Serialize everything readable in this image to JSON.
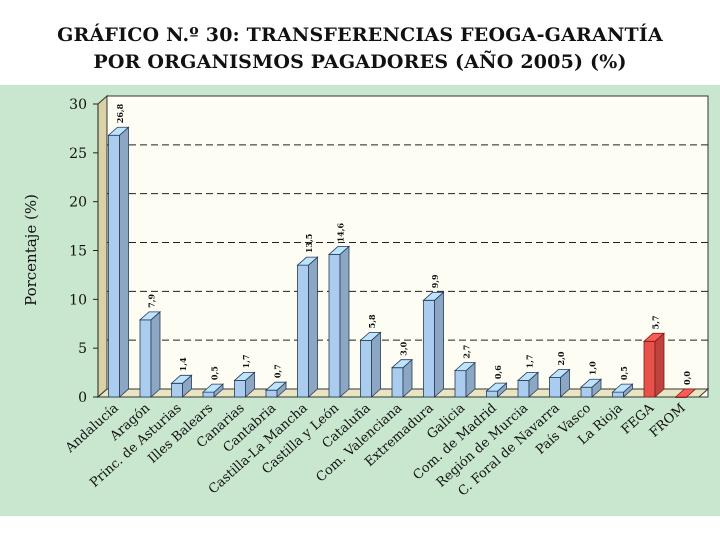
{
  "title_line1": "GRÁFICO N.º 30: TRANSFERENCIAS FEOGA-GARANTÍA",
  "title_line2": "POR ORGANISMOS PAGADORES (AÑO 2005) (%)",
  "colors": {
    "panel": "#c9e6cf",
    "plot_bg": "#fdfdf4",
    "wall": "#d8d2a6",
    "bar_blue": "#a9ccef",
    "bar_red": "#e8504a"
  },
  "chart_data": {
    "type": "bar",
    "title": "GRÁFICO N.º 30: TRANSFERENCIAS FEOGA-GARANTÍA POR ORGANISMOS PAGADORES (AÑO 2005) (%)",
    "xlabel": "",
    "ylabel": "Porcentaje (%)",
    "ylim": [
      0,
      30
    ],
    "yticks": [
      "0",
      "5",
      "10",
      "15",
      "20",
      "25",
      "30"
    ],
    "grid": true,
    "categories": [
      "Andalucía",
      "Aragón",
      "Princ. de Asturias",
      "Illes Balears",
      "Canarias",
      "Cantabria",
      "Castilla-La Mancha",
      "Castilla y León",
      "Cataluña",
      "Com. Valenciana",
      "Extremadura",
      "Galicia",
      "Com. de Madrid",
      "Región de Murcia",
      "C. Foral de Navarra",
      "País Vasco",
      "La Rioja",
      "FEGA",
      "FROM"
    ],
    "values": [
      26.8,
      7.9,
      1.4,
      0.5,
      1.7,
      0.7,
      13.5,
      14.6,
      5.8,
      3.0,
      9.9,
      2.7,
      0.6,
      1.7,
      2.0,
      1.0,
      0.5,
      5.7,
      0.0
    ],
    "labels": [
      "26,8",
      "7,9",
      "1,4",
      "0,5",
      "1,7",
      "0,7",
      "13,5",
      "14,6",
      "5,8",
      "3,0",
      "9,9",
      "2,7",
      "0,6",
      "1,7",
      "2,0",
      "1,0",
      "0,5",
      "5,7",
      "0,0"
    ],
    "highlight": [
      "FEGA",
      "FROM"
    ]
  }
}
